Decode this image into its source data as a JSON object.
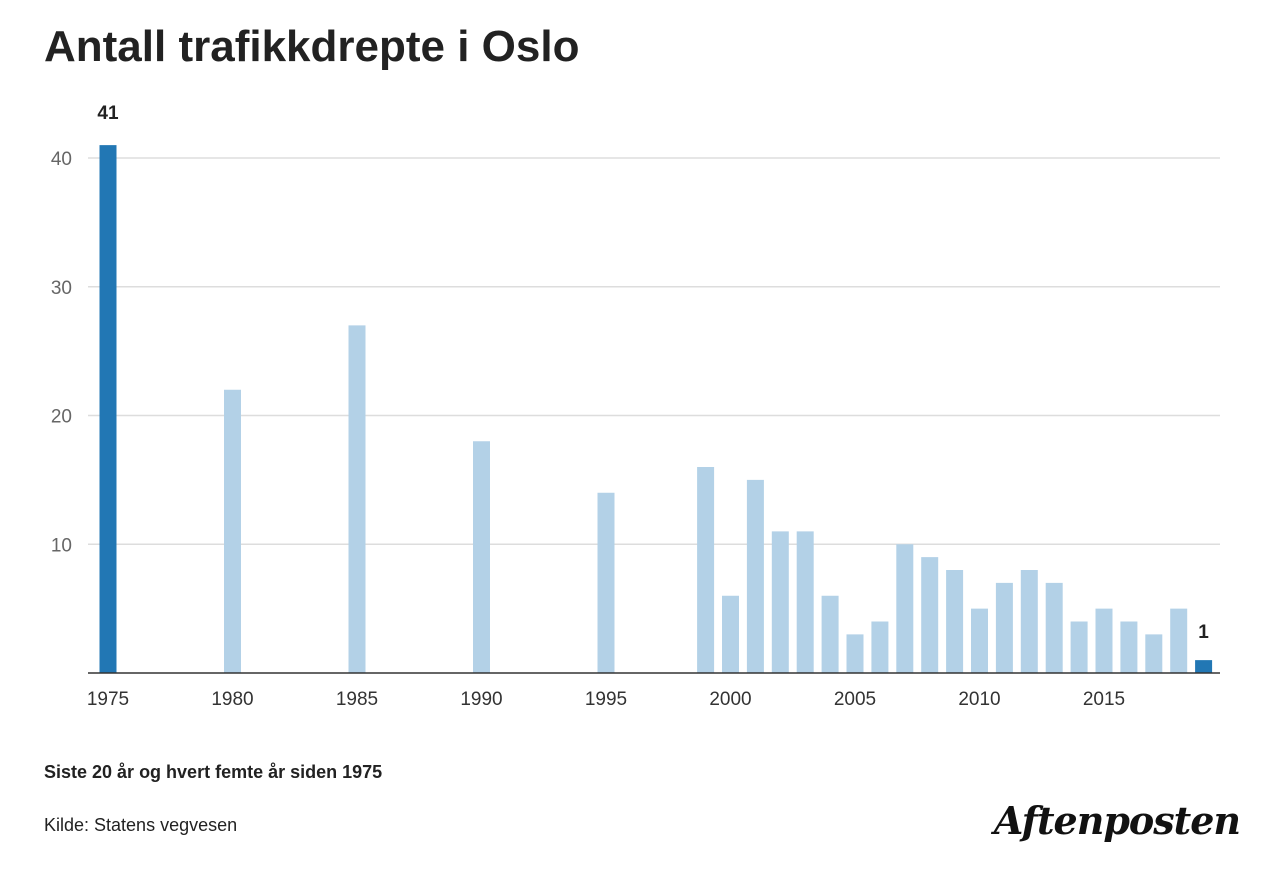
{
  "title": "Antall trafikkdrepte i Oslo",
  "subtitle": "Siste 20 år og hvert femte år siden 1975",
  "source": "Kilde: Statens vegvesen",
  "logo": "Aftenposten",
  "colors": {
    "highlight": "#2277b4",
    "bar": "#b3d1e7",
    "grid": "#dddddd",
    "axis": "#333333"
  },
  "chart_data": {
    "type": "bar",
    "title": "Antall trafikkdrepte i Oslo",
    "xlabel": "",
    "ylabel": "",
    "ylim": [
      0,
      41
    ],
    "yticks": [
      10,
      20,
      30,
      40
    ],
    "xticks": [
      1975,
      1980,
      1985,
      1990,
      1995,
      2000,
      2005,
      2010,
      2015
    ],
    "grid": true,
    "categories": [
      1975,
      1980,
      1985,
      1990,
      1995,
      1999,
      2000,
      2001,
      2002,
      2003,
      2004,
      2005,
      2006,
      2007,
      2008,
      2009,
      2010,
      2011,
      2012,
      2013,
      2014,
      2015,
      2016,
      2017,
      2018,
      2019
    ],
    "values": [
      41,
      22,
      27,
      18,
      14,
      16,
      6,
      15,
      11,
      11,
      6,
      3,
      4,
      10,
      9,
      8,
      5,
      7,
      8,
      7,
      4,
      5,
      4,
      3,
      5,
      1
    ],
    "highlighted": [
      1975,
      2019
    ],
    "data_labels": [
      {
        "x": 1975,
        "label": "41"
      },
      {
        "x": 2019,
        "label": "1"
      }
    ]
  }
}
